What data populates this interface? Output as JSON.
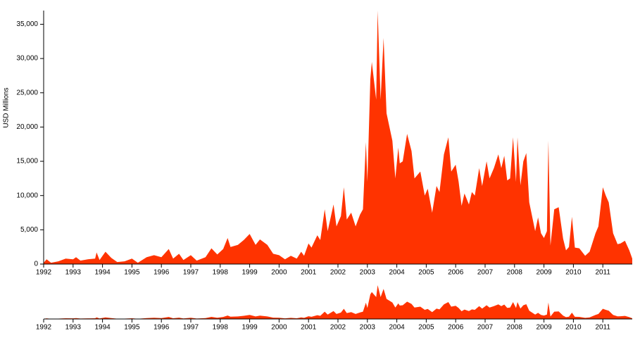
{
  "chart_data": {
    "type": "area",
    "y_label": "USD Millions",
    "x": [
      1992.0,
      1992.1,
      1992.25,
      1992.5,
      1992.75,
      1993.0,
      1993.1,
      1993.25,
      1993.5,
      1993.75,
      1993.8,
      1993.9,
      1994.1,
      1994.3,
      1994.5,
      1994.75,
      1995.0,
      1995.2,
      1995.5,
      1995.75,
      1996.0,
      1996.25,
      1996.4,
      1996.6,
      1996.75,
      1997.0,
      1997.2,
      1997.5,
      1997.7,
      1997.9,
      1998.1,
      1998.25,
      1998.35,
      1998.6,
      1998.8,
      1999.0,
      1999.2,
      1999.35,
      1999.6,
      1999.8,
      2000.0,
      2000.2,
      2000.4,
      2000.6,
      2000.75,
      2000.85,
      2001.0,
      2001.1,
      2001.3,
      2001.4,
      2001.55,
      2001.65,
      2001.85,
      2001.95,
      2002.1,
      2002.2,
      2002.3,
      2002.45,
      2002.6,
      2002.75,
      2002.85,
      2002.95,
      2003.0,
      2003.1,
      2003.15,
      2003.3,
      2003.35,
      2003.45,
      2003.55,
      2003.65,
      2003.85,
      2003.95,
      2004.05,
      2004.1,
      2004.2,
      2004.35,
      2004.5,
      2004.6,
      2004.8,
      2004.95,
      2005.05,
      2005.2,
      2005.35,
      2005.45,
      2005.6,
      2005.75,
      2005.85,
      2006.0,
      2006.1,
      2006.2,
      2006.3,
      2006.45,
      2006.55,
      2006.65,
      2006.8,
      2006.9,
      2007.05,
      2007.15,
      2007.3,
      2007.45,
      2007.55,
      2007.65,
      2007.75,
      2007.85,
      2007.95,
      2008.05,
      2008.1,
      2008.2,
      2008.3,
      2008.4,
      2008.5,
      2008.7,
      2008.8,
      2008.9,
      2009.0,
      2009.1,
      2009.15,
      2009.22,
      2009.35,
      2009.5,
      2009.65,
      2009.75,
      2009.85,
      2009.95,
      2010.05,
      2010.2,
      2010.4,
      2010.55,
      2010.75,
      2010.85,
      2011.0,
      2011.1,
      2011.2,
      2011.35,
      2011.5,
      2011.6,
      2011.75,
      2011.9,
      2012.0
    ],
    "series": [
      {
        "color": "#ff3300",
        "values": [
          200,
          700,
          200,
          400,
          800,
          700,
          1000,
          500,
          700,
          800,
          1700,
          600,
          1800,
          900,
          300,
          400,
          800,
          200,
          1000,
          1300,
          1000,
          2200,
          800,
          1500,
          600,
          1300,
          500,
          1000,
          2300,
          1400,
          2200,
          3800,
          2500,
          2800,
          3500,
          4400,
          2800,
          3600,
          2800,
          1500,
          1300,
          700,
          1200,
          800,
          1800,
          1200,
          3000,
          2400,
          4200,
          3500,
          8000,
          4800,
          8700,
          5500,
          7000,
          11200,
          6500,
          7500,
          5500,
          7200,
          8000,
          17800,
          12000,
          27000,
          29500,
          24000,
          37000,
          24000,
          33000,
          22000,
          18000,
          12500,
          17000,
          14700,
          15000,
          19000,
          16500,
          12500,
          13500,
          10000,
          11000,
          7500,
          11400,
          10500,
          16000,
          18500,
          13500,
          14500,
          12000,
          8500,
          10300,
          8700,
          10500,
          10000,
          14000,
          11400,
          15000,
          12500,
          14000,
          16000,
          14000,
          15800,
          12200,
          12500,
          18500,
          12000,
          18500,
          11500,
          15000,
          16200,
          9000,
          4800,
          6800,
          4500,
          3800,
          4800,
          18000,
          2700,
          8000,
          8300,
          3700,
          2000,
          2500,
          6900,
          2400,
          2300,
          1200,
          1800,
          4500,
          5500,
          11200,
          10000,
          9000,
          4500,
          2900,
          3000,
          3400,
          2000,
          800
        ]
      }
    ],
    "xlim": [
      1992,
      2012
    ],
    "xticks": [
      1992,
      1993,
      1994,
      1995,
      1996,
      1997,
      1998,
      1999,
      2000,
      2001,
      2002,
      2003,
      2004,
      2005,
      2006,
      2007,
      2008,
      2009,
      2010,
      2011
    ],
    "ylim": [
      0,
      37000
    ],
    "yticks": [
      0,
      {
        "value": 5000,
        "label": "5,000"
      },
      {
        "value": 10000,
        "label": "10,000"
      },
      {
        "value": 15000,
        "label": "15,000"
      },
      {
        "value": 20000,
        "label": "20,000"
      },
      {
        "value": 25000,
        "label": "25,000"
      },
      {
        "value": 30000,
        "label": "30,000"
      },
      {
        "value": 35000,
        "label": "35,000"
      }
    ]
  }
}
